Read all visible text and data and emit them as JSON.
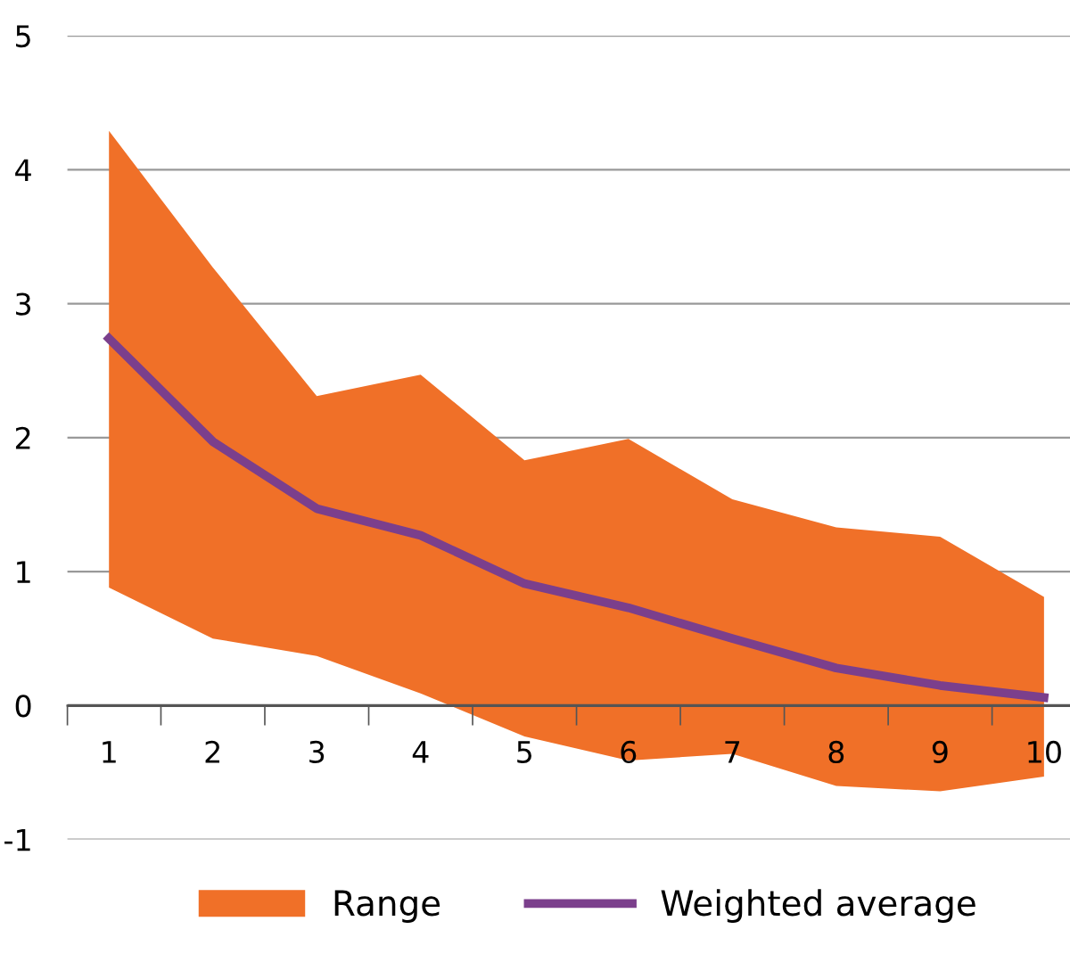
{
  "chart_data": {
    "type": "line",
    "x": [
      1,
      2,
      3,
      4,
      5,
      6,
      7,
      8,
      9,
      10
    ],
    "series": [
      {
        "name": "Range",
        "type": "area",
        "color": "#f07028",
        "values": [
          null,
          null,
          null,
          null,
          null,
          null,
          null,
          null,
          null,
          null
        ],
        "lower": [
          0.88,
          0.5,
          0.37,
          0.09,
          -0.23,
          -0.41,
          -0.36,
          -0.6,
          -0.64,
          -0.53
        ],
        "upper": [
          4.29,
          3.27,
          2.31,
          2.47,
          1.83,
          1.99,
          1.54,
          1.33,
          1.26,
          0.81
        ]
      },
      {
        "name": "Weighted average",
        "color": "#7b3f8c",
        "values": [
          2.74,
          1.97,
          1.47,
          1.27,
          0.91,
          0.73,
          0.5,
          0.28,
          0.15,
          0.06
        ]
      }
    ],
    "xlim": [
      0.6,
      10.25
    ],
    "ylim": [
      -1,
      5
    ],
    "xticks": [
      1,
      2,
      3,
      4,
      5,
      6,
      7,
      8,
      9,
      10,
      {
        "value": 0.6,
        "label": null
      },
      {
        "value": 1.5,
        "label": null
      },
      {
        "value": 2.5,
        "label": null
      },
      {
        "value": 3.5,
        "label": null
      },
      {
        "value": 4.5,
        "label": null
      },
      {
        "value": 5.5,
        "label": null
      },
      {
        "value": 6.5,
        "label": null
      },
      {
        "value": 7.5,
        "label": null
      },
      {
        "value": 8.5,
        "label": null
      },
      {
        "value": 9.5,
        "label": null
      }
    ],
    "yticks": [
      -1,
      0,
      1,
      2,
      3,
      4,
      5
    ],
    "ref_lines": [
      {
        "axis": "y",
        "value": 0,
        "color": "#555555"
      }
    ],
    "grid": "y",
    "legend": "bottom"
  }
}
